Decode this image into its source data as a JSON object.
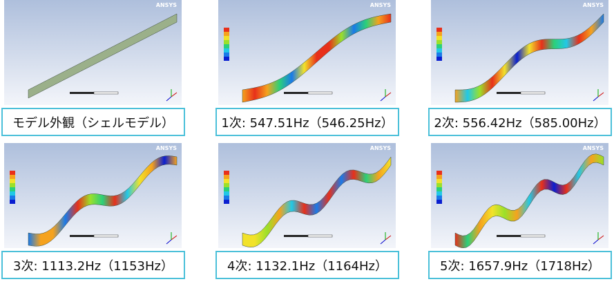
{
  "panels": [
    {
      "caption": "モデル外観（シェルモデル）",
      "logo": "ANSYS"
    },
    {
      "caption": "1次: 547.51Hz（546.25Hz）",
      "logo": "ANSYS"
    },
    {
      "caption": "2次: 556.42Hz（585.00Hz）",
      "logo": "ANSYS"
    },
    {
      "caption": "3次: 1113.2Hz（1153Hz）",
      "logo": "ANSYS"
    },
    {
      "caption": "4次: 1132.1Hz（1164Hz）",
      "logo": "ANSYS"
    },
    {
      "caption": "5次: 1657.9Hz（1718Hz）",
      "logo": "ANSYS"
    }
  ]
}
